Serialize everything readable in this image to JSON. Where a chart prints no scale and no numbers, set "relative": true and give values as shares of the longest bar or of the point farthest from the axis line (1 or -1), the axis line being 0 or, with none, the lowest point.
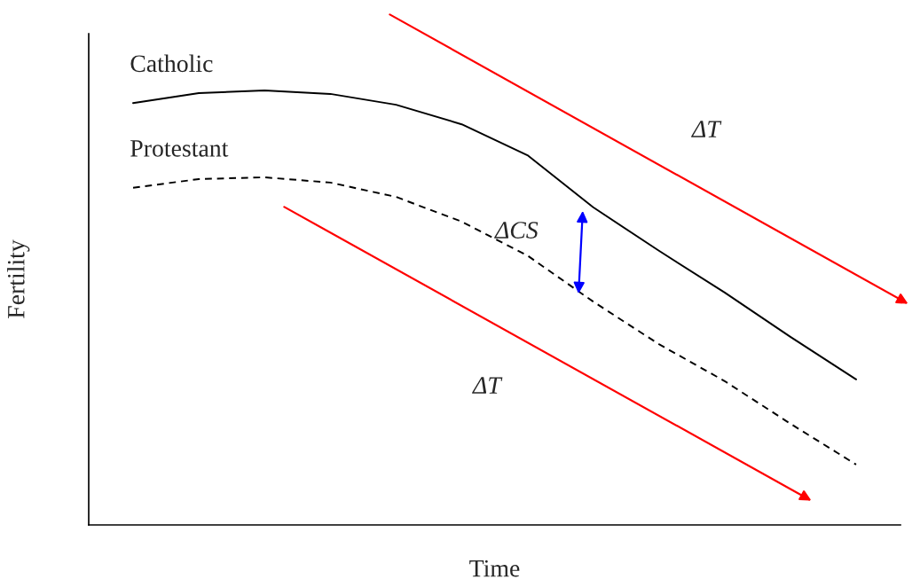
{
  "chart_data": {
    "type": "line",
    "relative": true,
    "xlabel": "Time",
    "ylabel": "Fertility",
    "categories": [
      null,
      null,
      null,
      null,
      null,
      null,
      null,
      null,
      null,
      null,
      null,
      null
    ],
    "series": [
      {
        "name": "Catholic",
        "color": "#000000",
        "line_style": "solid",
        "values": [
          0.971,
          0.994,
          1.0,
          0.992,
          0.967,
          0.922,
          0.851,
          0.731,
          0.631,
          0.535,
          0.433,
          0.335
        ]
      },
      {
        "name": "Protestant",
        "color": "#000000",
        "line_style": "dashed",
        "values": [
          0.776,
          0.796,
          0.8,
          0.788,
          0.755,
          0.698,
          0.62,
          0.514,
          0.416,
          0.331,
          0.233,
          0.139
        ]
      }
    ],
    "annotations": [
      "ΔT",
      "ΔCS",
      "ΔT"
    ],
    "legend": false,
    "marker": "none"
  }
}
